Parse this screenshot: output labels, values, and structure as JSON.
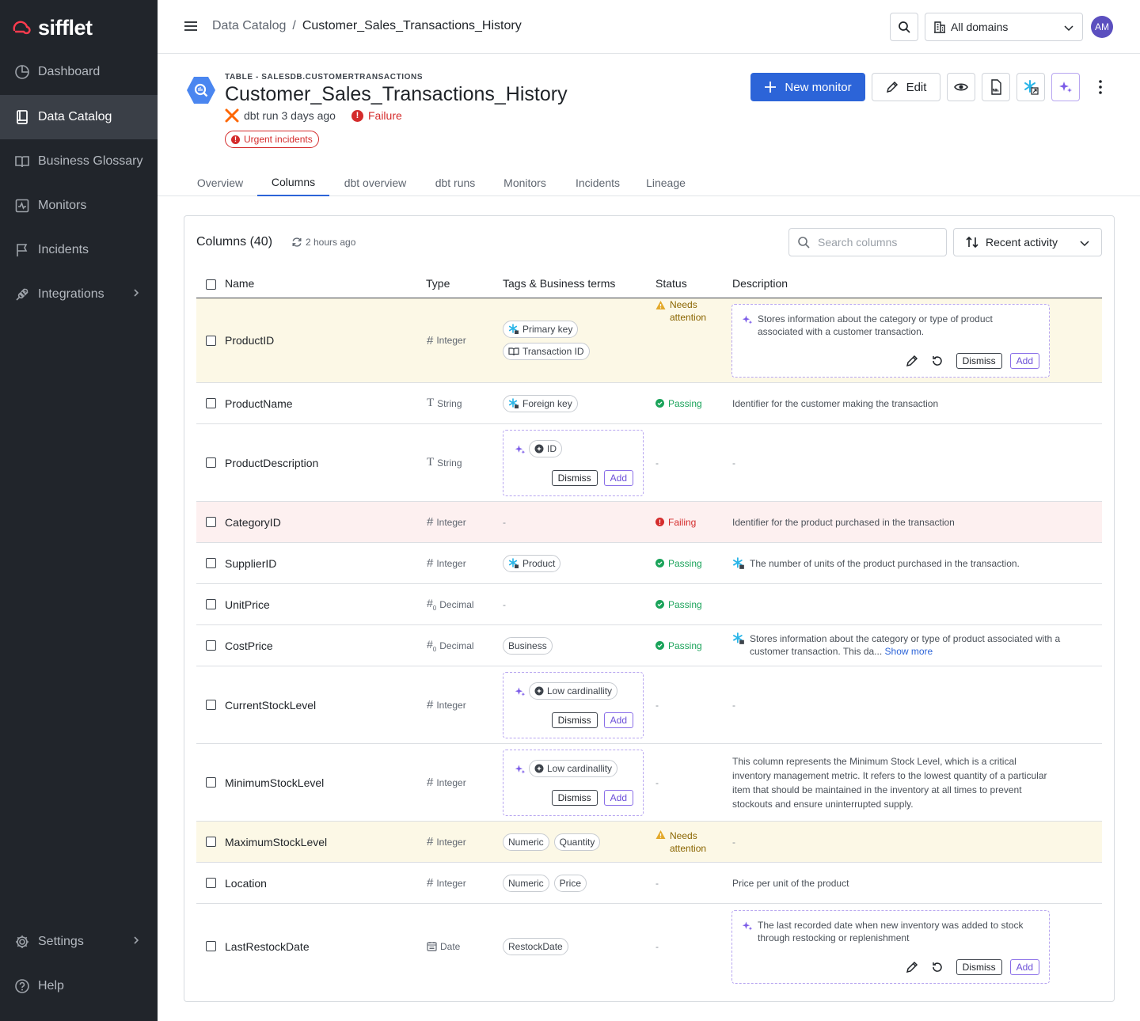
{
  "app": {
    "brand": "sifflet"
  },
  "colors": {
    "primary": "#2c64d8",
    "failure": "#d42c2c",
    "passing": "#1aa35a",
    "warning": "#e3a92b",
    "ai_accent": "#8a6fe8"
  },
  "sidebar": {
    "items": [
      {
        "label": "Dashboard",
        "icon": "dashboard-icon"
      },
      {
        "label": "Data Catalog",
        "icon": "book-icon",
        "active": true
      },
      {
        "label": "Business Glossary",
        "icon": "open-book-icon"
      },
      {
        "label": "Monitors",
        "icon": "pulse-icon"
      },
      {
        "label": "Incidents",
        "icon": "flag-icon"
      },
      {
        "label": "Integrations",
        "icon": "plug-icon"
      }
    ],
    "bottom": [
      {
        "label": "Settings",
        "icon": "gear-icon"
      },
      {
        "label": "Help",
        "icon": "help-icon"
      }
    ]
  },
  "topbar": {
    "breadcrumb_root": "Data Catalog",
    "breadcrumb_sep": "/",
    "breadcrumb_current": "Customer_Sales_Transactions_History",
    "domain": "All domains",
    "avatar": "AM"
  },
  "header": {
    "kicker": "TABLE - SALESDB.CUSTOMERTRANSACTIONS",
    "title": "Customer_Sales_Transactions_History",
    "dbt_run": "dbt run 3 days ago",
    "run_status": "Failure",
    "urgent": "Urgent incidents",
    "new_monitor": "New monitor",
    "edit": "Edit"
  },
  "tabs": [
    "Overview",
    "Columns",
    "dbt overview",
    "dbt runs",
    "Monitors",
    "Incidents",
    "Lineage"
  ],
  "columns_panel": {
    "title": "Columns (40)",
    "refreshed": "2 hours ago",
    "search_placeholder": "Search columns",
    "sort_label": "Recent activity",
    "headers": {
      "name": "Name",
      "type": "Type",
      "tags": "Tags & Business terms",
      "status": "Status",
      "description": "Description"
    },
    "dash": "-",
    "dismiss": "Dismiss",
    "add": "Add",
    "rows": [
      {
        "name": "ProductID",
        "type": "Integer",
        "tags": [
          "Primary key",
          "Transaction ID"
        ],
        "status": "Needs attention",
        "description": "Stores information about the category or type of product associated with a customer transaction."
      },
      {
        "name": "ProductName",
        "type": "String",
        "tags": [
          "Foreign key"
        ],
        "status": "Passing",
        "description": "Identifier for the customer making the transaction"
      },
      {
        "name": "ProductDescription",
        "type": "String",
        "tags": [
          "ID"
        ],
        "status": "-",
        "description": "-"
      },
      {
        "name": "CategoryID",
        "type": "Integer",
        "tags": [
          "-"
        ],
        "status": "Failing",
        "description": "Identifier for the product purchased in the transaction"
      },
      {
        "name": "SupplierID",
        "type": "Integer",
        "tags": [
          "Product"
        ],
        "status": "Passing",
        "description": "The number of units of the product purchased in the transaction."
      },
      {
        "name": "UnitPrice",
        "type": "Decimal",
        "tags": [
          "-"
        ],
        "status": "Passing",
        "description": ""
      },
      {
        "name": "CostPrice",
        "type": "Decimal",
        "tags": [
          "Business"
        ],
        "status": "Passing",
        "description": "Stores information about the category or type of product associated with a customer transaction. This da...",
        "show_more": "Show more"
      },
      {
        "name": "CurrentStockLevel",
        "type": "Integer",
        "tags": [
          "Low cardinallity"
        ],
        "status": "-",
        "description": "-"
      },
      {
        "name": "MinimumStockLevel",
        "type": "Integer",
        "tags": [
          "Low cardinallity"
        ],
        "status": "-",
        "description": "This column represents the Minimum Stock Level, which is a critical inventory management metric. It refers to the lowest quantity of a particular item that should be maintained in the inventory at all times to prevent stockouts and ensure uninterrupted supply."
      },
      {
        "name": "MaximumStockLevel",
        "type": "Integer",
        "tags": [
          "Numeric",
          "Quantity"
        ],
        "status": "Needs attention",
        "description": "-"
      },
      {
        "name": "Location",
        "type": "Integer",
        "tags": [
          "Numeric",
          "Price"
        ],
        "status": "-",
        "description": "Price per unit of the product"
      },
      {
        "name": "LastRestockDate",
        "type": "Date",
        "tags": [
          "RestockDate"
        ],
        "status": "-",
        "description": "The last recorded date when new inventory was added to stock through restocking or replenishment"
      }
    ]
  }
}
